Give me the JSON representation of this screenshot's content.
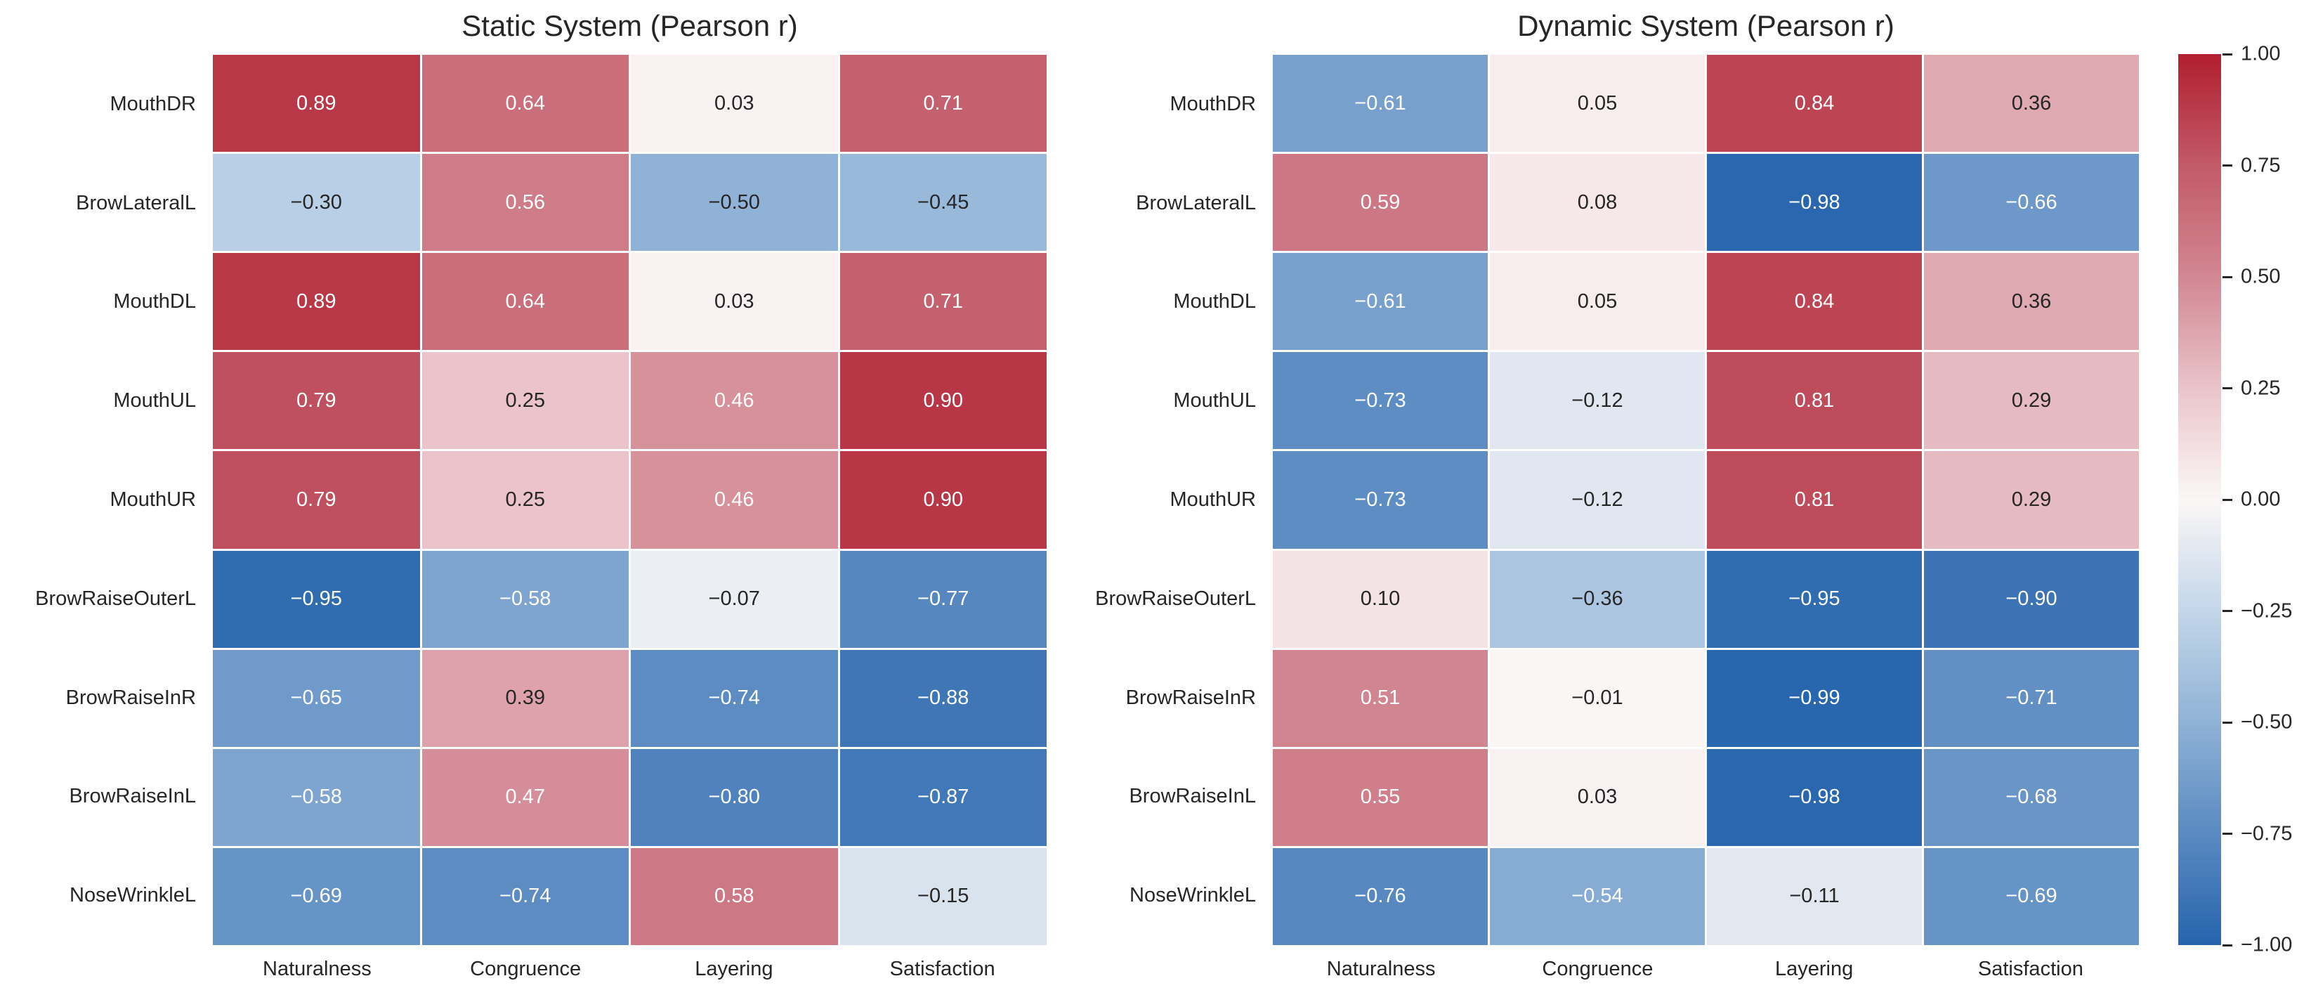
{
  "figure": {
    "background": "#ffffff",
    "text_color": "#262626"
  },
  "chart_data": [
    {
      "type": "heatmap",
      "title": "Static System (Pearson r)",
      "rows": [
        "MouthDR",
        "BrowLateralL",
        "MouthDL",
        "MouthUL",
        "MouthUR",
        "BrowRaiseOuterL",
        "BrowRaiseInR",
        "BrowRaiseInL",
        "NoseWrinkleL"
      ],
      "columns": [
        "Naturalness",
        "Congruence",
        "Layering",
        "Satisfaction"
      ],
      "values": [
        [
          0.89,
          0.64,
          0.03,
          0.71
        ],
        [
          -0.3,
          0.56,
          -0.5,
          -0.45
        ],
        [
          0.89,
          0.64,
          0.03,
          0.71
        ],
        [
          0.79,
          0.25,
          0.46,
          0.9
        ],
        [
          0.79,
          0.25,
          0.46,
          0.9
        ],
        [
          -0.95,
          -0.58,
          -0.07,
          -0.77
        ],
        [
          -0.65,
          0.39,
          -0.74,
          -0.88
        ],
        [
          -0.58,
          0.47,
          -0.8,
          -0.87
        ],
        [
          -0.69,
          -0.74,
          0.58,
          -0.15
        ]
      ],
      "vmin": -1.0,
      "vmax": 1.0,
      "annotations_shown": true,
      "legend_position": "shared-colorbar-right"
    },
    {
      "type": "heatmap",
      "title": "Dynamic System (Pearson r)",
      "rows": [
        "MouthDR",
        "BrowLateralL",
        "MouthDL",
        "MouthUL",
        "MouthUR",
        "BrowRaiseOuterL",
        "BrowRaiseInR",
        "BrowRaiseInL",
        "NoseWrinkleL"
      ],
      "columns": [
        "Naturalness",
        "Congruence",
        "Layering",
        "Satisfaction"
      ],
      "values": [
        [
          -0.61,
          0.05,
          0.84,
          0.36
        ],
        [
          0.59,
          0.08,
          -0.98,
          -0.66
        ],
        [
          -0.61,
          0.05,
          0.84,
          0.36
        ],
        [
          -0.73,
          -0.12,
          0.81,
          0.29
        ],
        [
          -0.73,
          -0.12,
          0.81,
          0.29
        ],
        [
          0.1,
          -0.36,
          -0.95,
          -0.9
        ],
        [
          0.51,
          -0.01,
          -0.99,
          -0.71
        ],
        [
          0.55,
          0.03,
          -0.98,
          -0.68
        ],
        [
          -0.76,
          -0.54,
          -0.11,
          -0.69
        ]
      ],
      "vmin": -1.0,
      "vmax": 1.0,
      "annotations_shown": true,
      "legend_position": "shared-colorbar-right"
    }
  ],
  "colorbar": {
    "tick_labels": [
      "1.00",
      "0.75",
      "0.50",
      "0.25",
      "0.00",
      "−0.25",
      "−0.50",
      "−0.75",
      "−1.00"
    ],
    "vmin": -1.0,
    "vmax": 1.0
  },
  "colormap": {
    "name": "diverging-blue-white-red",
    "stops": [
      {
        "v": -1.0,
        "color": "#2664ac"
      },
      {
        "v": -0.75,
        "color": "#5a8ac1"
      },
      {
        "v": -0.5,
        "color": "#8fb2d6"
      },
      {
        "v": -0.25,
        "color": "#c3d6e9"
      },
      {
        "v": 0.0,
        "color": "#fbf7f6"
      },
      {
        "v": 0.25,
        "color": "#eac4ca"
      },
      {
        "v": 0.5,
        "color": "#d28792"
      },
      {
        "v": 0.75,
        "color": "#c25a68"
      },
      {
        "v": 1.0,
        "color": "#b11e2f"
      }
    ],
    "annotation_text_light": "#ffffff",
    "annotation_text_dark": "#262626",
    "luminance_threshold": 0.408
  }
}
